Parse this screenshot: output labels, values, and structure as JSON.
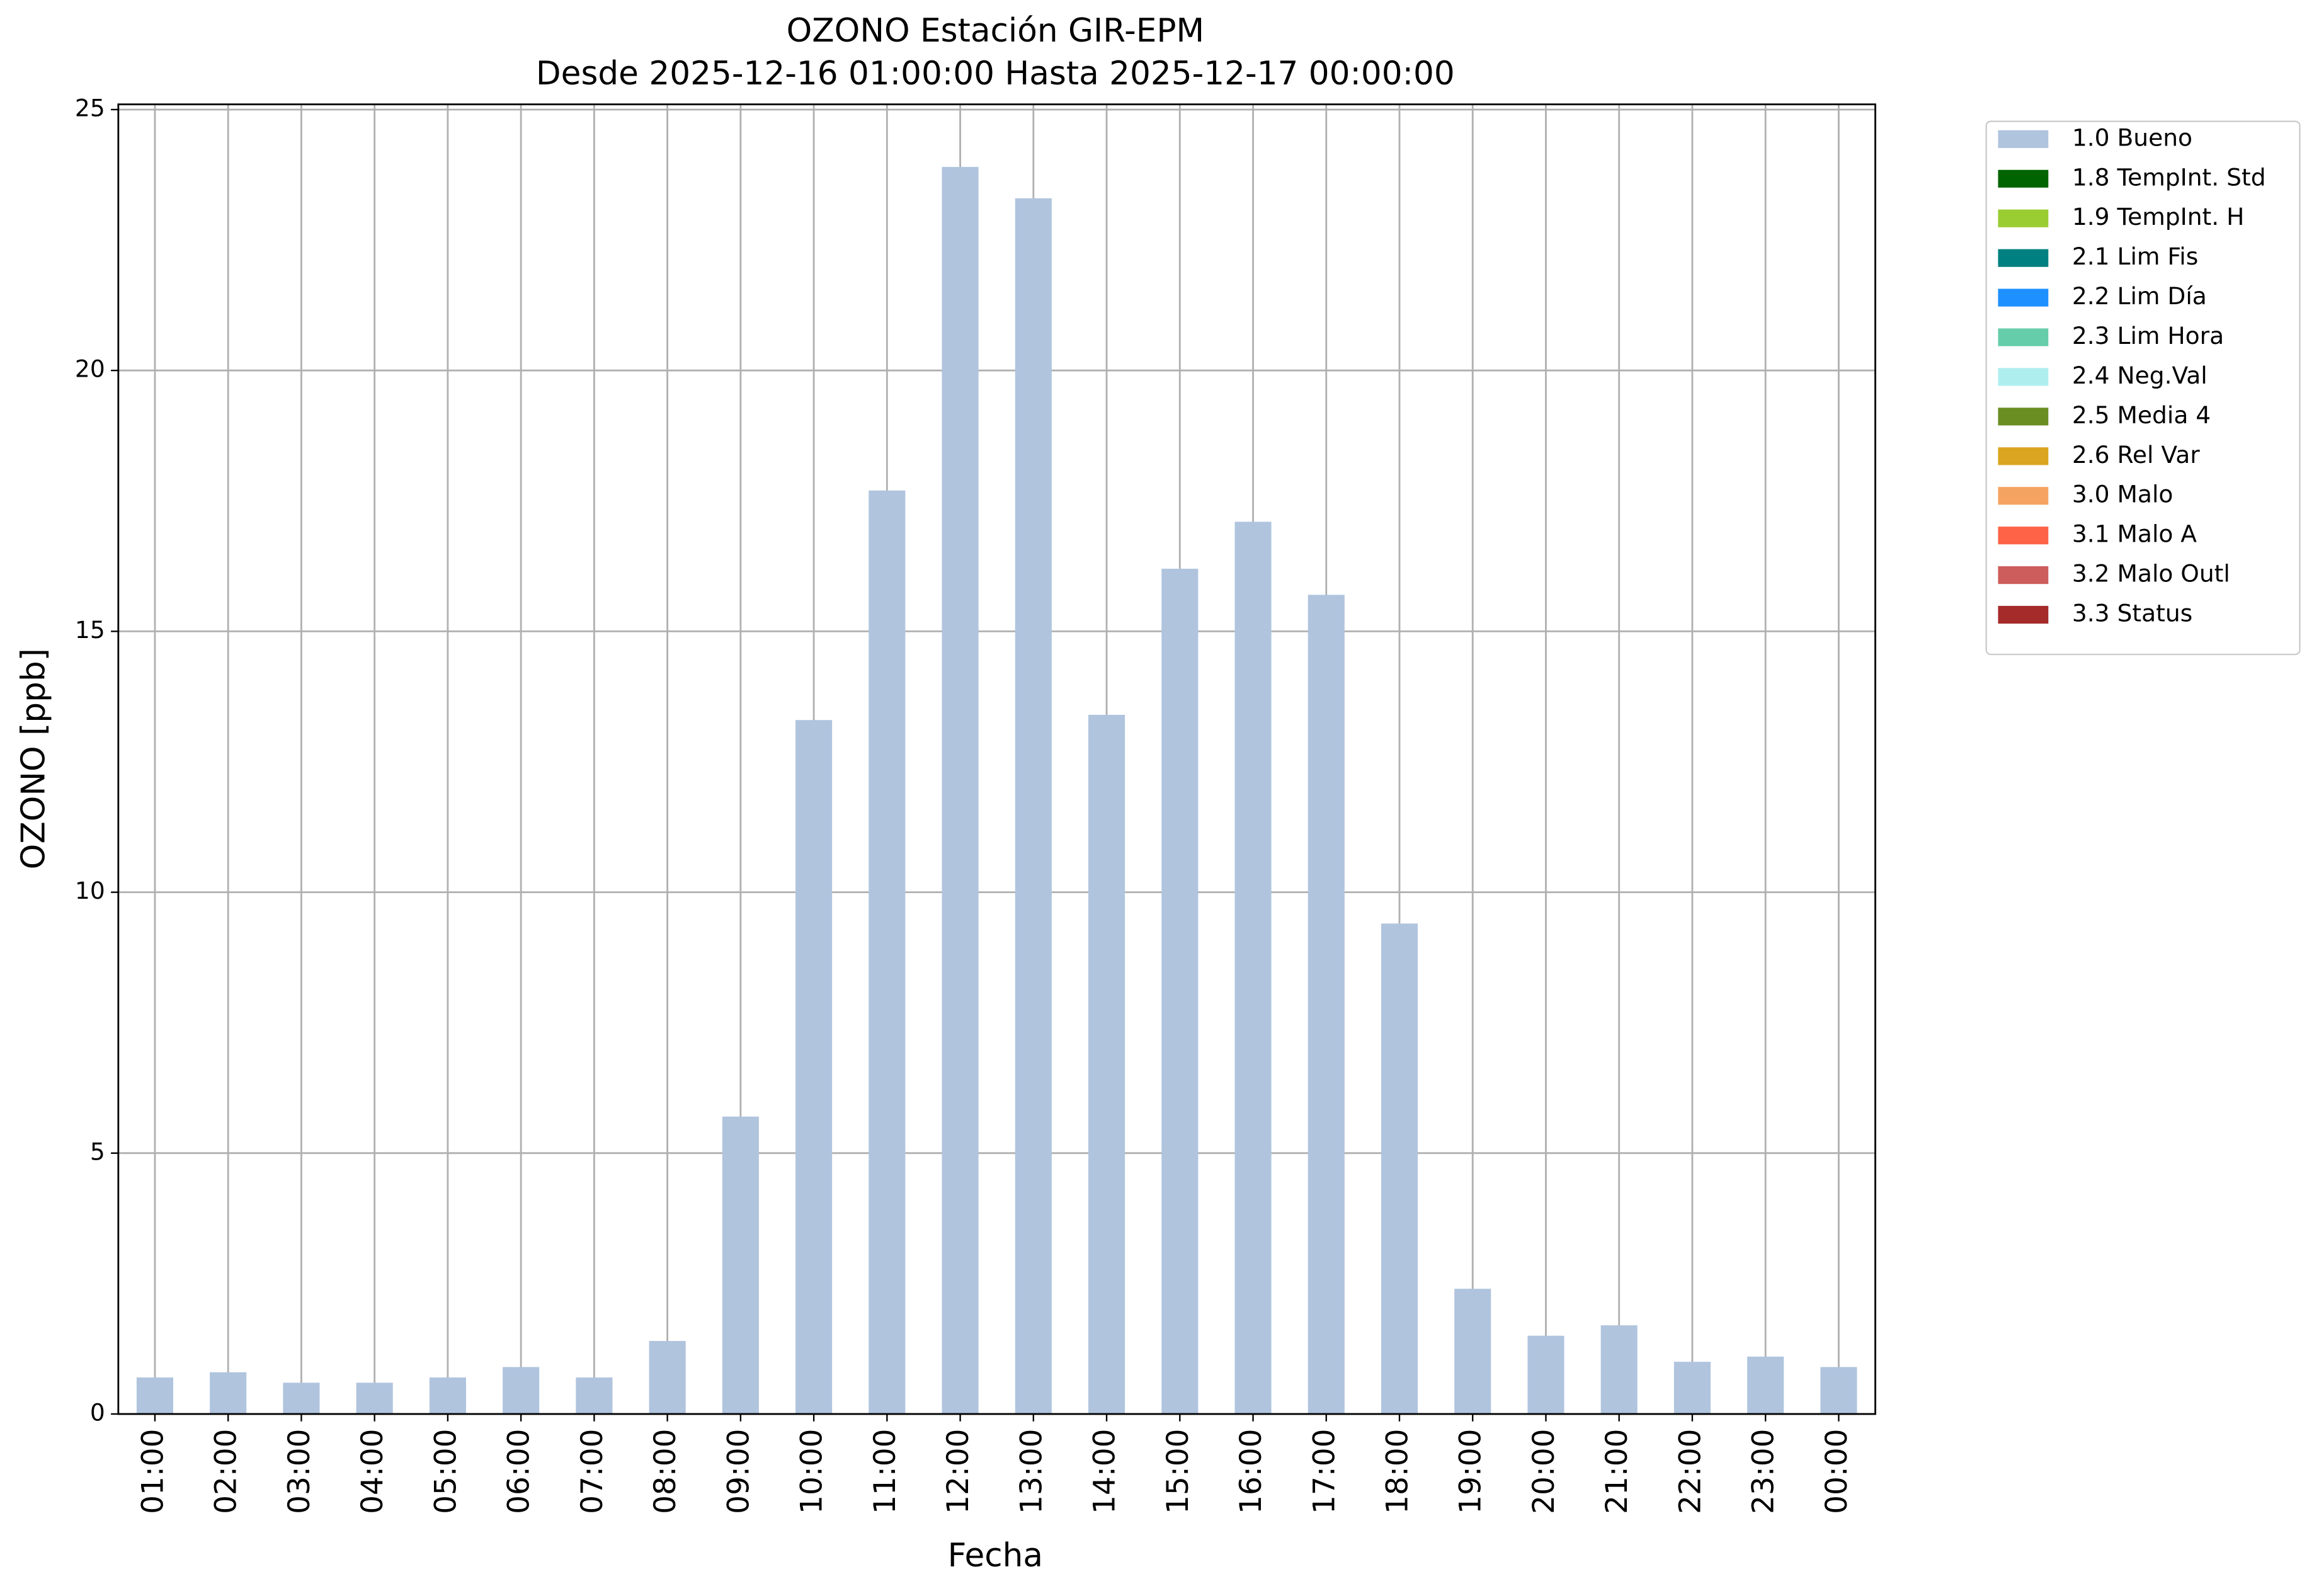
{
  "chart_data": {
    "type": "bar",
    "stacked": true,
    "title": "OZONO Estación GIR-EPM",
    "subtitle": "Desde 2025-12-16 01:00:00 Hasta 2025-12-17 00:00:00",
    "x_label": "Fecha",
    "y_label": "OZONO [ppb]",
    "categories": [
      "01:00",
      "02:00",
      "03:00",
      "04:00",
      "05:00",
      "06:00",
      "07:00",
      "08:00",
      "09:00",
      "10:00",
      "11:00",
      "12:00",
      "13:00",
      "14:00",
      "15:00",
      "16:00",
      "17:00",
      "18:00",
      "19:00",
      "20:00",
      "21:00",
      "22:00",
      "23:00",
      "00:00"
    ],
    "series": [
      {
        "name": "1.0 Bueno",
        "color": "#b0c4de",
        "values": [
          0.7,
          0.8,
          0.6,
          0.6,
          0.7,
          0.9,
          0.7,
          1.4,
          5.7,
          13.3,
          17.7,
          23.9,
          23.3,
          13.4,
          16.2,
          17.1,
          15.7,
          9.4,
          2.4,
          1.5,
          1.7,
          1.0,
          1.1,
          0.9
        ]
      },
      {
        "name": "1.8 TempInt. Std",
        "color": "#006400",
        "values": [
          0,
          0,
          0,
          0,
          0,
          0,
          0,
          0,
          0,
          0,
          0,
          0,
          0,
          0,
          0,
          0,
          0,
          0,
          0,
          0,
          0,
          0,
          0,
          0
        ]
      },
      {
        "name": "1.9 TempInt. H",
        "color": "#9acd32",
        "values": [
          0,
          0,
          0,
          0,
          0,
          0,
          0,
          0,
          0,
          0,
          0,
          0,
          0,
          0,
          0,
          0,
          0,
          0,
          0,
          0,
          0,
          0,
          0,
          0
        ]
      },
      {
        "name": "2.1 Lim Fis",
        "color": "#008080",
        "values": [
          0,
          0,
          0,
          0,
          0,
          0,
          0,
          0,
          0,
          0,
          0,
          0,
          0,
          0,
          0,
          0,
          0,
          0,
          0,
          0,
          0,
          0,
          0,
          0
        ]
      },
      {
        "name": "2.2 Lim Día",
        "color": "#1e90ff",
        "values": [
          0,
          0,
          0,
          0,
          0,
          0,
          0,
          0,
          0,
          0,
          0,
          0,
          0,
          0,
          0,
          0,
          0,
          0,
          0,
          0,
          0,
          0,
          0,
          0
        ]
      },
      {
        "name": "2.3 Lim Hora",
        "color": "#66cdaa",
        "values": [
          0,
          0,
          0,
          0,
          0,
          0,
          0,
          0,
          0,
          0,
          0,
          0,
          0,
          0,
          0,
          0,
          0,
          0,
          0,
          0,
          0,
          0,
          0,
          0
        ]
      },
      {
        "name": "2.4 Neg.Val",
        "color": "#afeeee",
        "values": [
          0,
          0,
          0,
          0,
          0,
          0,
          0,
          0,
          0,
          0,
          0,
          0,
          0,
          0,
          0,
          0,
          0,
          0,
          0,
          0,
          0,
          0,
          0,
          0
        ]
      },
      {
        "name": "2.5 Media 4",
        "color": "#6b8e23",
        "values": [
          0,
          0,
          0,
          0,
          0,
          0,
          0,
          0,
          0,
          0,
          0,
          0,
          0,
          0,
          0,
          0,
          0,
          0,
          0,
          0,
          0,
          0,
          0,
          0
        ]
      },
      {
        "name": "2.6 Rel Var",
        "color": "#daa520",
        "values": [
          0,
          0,
          0,
          0,
          0,
          0,
          0,
          0,
          0,
          0,
          0,
          0,
          0,
          0,
          0,
          0,
          0,
          0,
          0,
          0,
          0,
          0,
          0,
          0
        ]
      },
      {
        "name": "3.0 Malo",
        "color": "#f4a460",
        "values": [
          0,
          0,
          0,
          0,
          0,
          0,
          0,
          0,
          0,
          0,
          0,
          0,
          0,
          0,
          0,
          0,
          0,
          0,
          0,
          0,
          0,
          0,
          0,
          0
        ]
      },
      {
        "name": "3.1 Malo A",
        "color": "#ff6347",
        "values": [
          0,
          0,
          0,
          0,
          0,
          0,
          0,
          0,
          0,
          0,
          0,
          0,
          0,
          0,
          0,
          0,
          0,
          0,
          0,
          0,
          0,
          0,
          0,
          0
        ]
      },
      {
        "name": "3.2 Malo Outl",
        "color": "#cd5c5c",
        "values": [
          0,
          0,
          0,
          0,
          0,
          0,
          0,
          0,
          0,
          0,
          0,
          0,
          0,
          0,
          0,
          0,
          0,
          0,
          0,
          0,
          0,
          0,
          0,
          0
        ]
      },
      {
        "name": "3.3 Status",
        "color": "#a52a2a",
        "values": [
          0,
          0,
          0,
          0,
          0,
          0,
          0,
          0,
          0,
          0,
          0,
          0,
          0,
          0,
          0,
          0,
          0,
          0,
          0,
          0,
          0,
          0,
          0,
          0
        ]
      }
    ],
    "ylim": [
      0,
      25.1
    ],
    "yticks": [
      0,
      5,
      10,
      15,
      20,
      25
    ],
    "grid": true,
    "legend": "outside-upper-right"
  }
}
